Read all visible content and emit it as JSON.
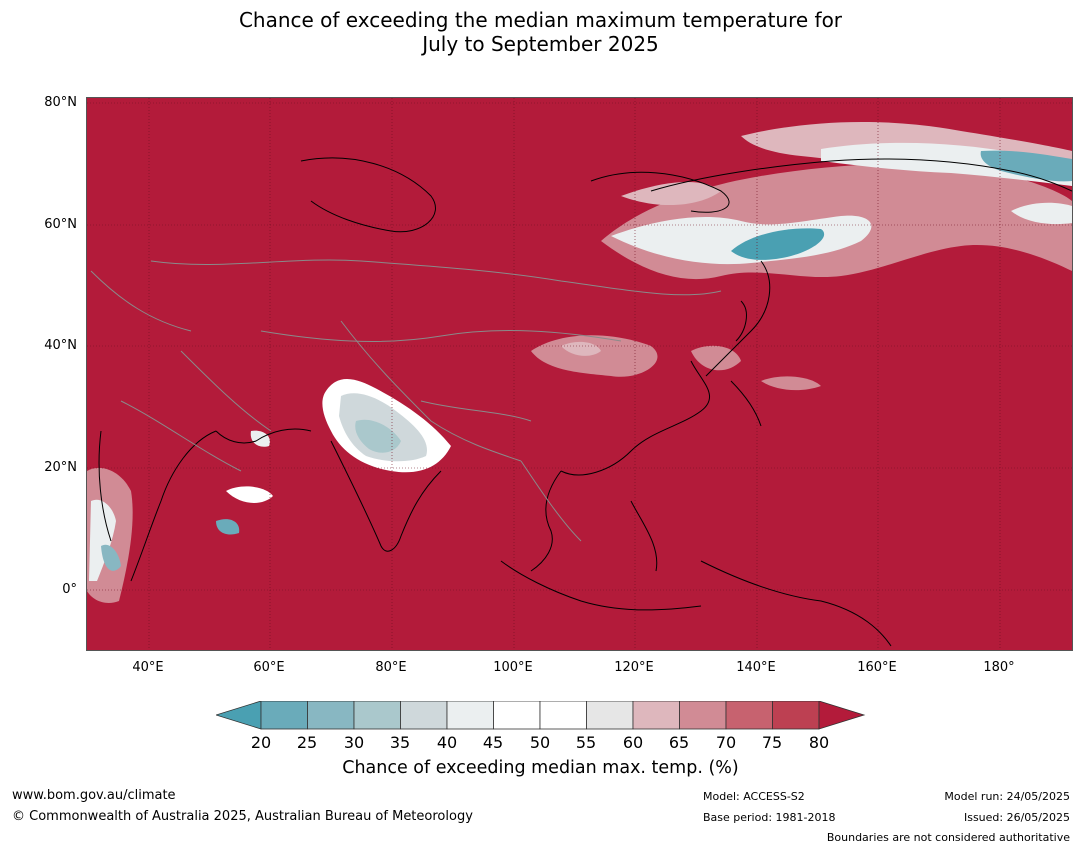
{
  "title": {
    "line1": "Chance of exceeding the median maximum temperature for",
    "line2": "July to September 2025"
  },
  "map": {
    "lat_labels": [
      "80°N",
      "60°N",
      "40°N",
      "20°N",
      "0°"
    ],
    "lon_labels": [
      "40°E",
      "60°E",
      "80°E",
      "100°E",
      "120°E",
      "140°E",
      "160°E",
      "180°"
    ],
    "background_color": "#b31b3a"
  },
  "colorbar": {
    "tick_labels": [
      "20",
      "25",
      "30",
      "35",
      "40",
      "45",
      "50",
      "55",
      "60",
      "65",
      "70",
      "75",
      "80"
    ],
    "colors": [
      "#4aa0b2",
      "#6aabba",
      "#88b7c2",
      "#aac8cc",
      "#cfd8db",
      "#ebeff0",
      "#ffffff",
      "#ffffff",
      "#e6e6e6",
      "#deb7bd",
      "#d18b95",
      "#c7626f",
      "#bd4052",
      "#b31b3a"
    ],
    "title": "Chance of exceeding median max. temp. (%)"
  },
  "footer": {
    "url": "www.bom.gov.au/climate",
    "copyright": "© Commonwealth of Australia 2025, Australian Bureau of Meteorology",
    "model": "Model: ACCESS-S2",
    "base_period": "Base period: 1981-2018",
    "model_run": "Model run: 24/05/2025",
    "issued": "Issued: 26/05/2025",
    "disclaimer": "Boundaries are not considered authoritative"
  }
}
